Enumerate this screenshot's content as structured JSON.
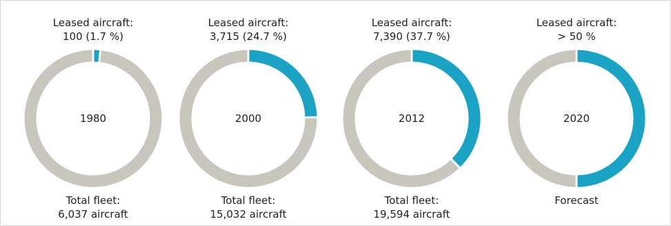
{
  "colors": {
    "leased": "#1aa3c4",
    "total": "#c8c6bd",
    "separator": "#ffffff",
    "text": "#222222"
  },
  "chart_data": [
    {
      "type": "pie",
      "center_label": "1980",
      "top_label_line1": "Leased aircraft:",
      "top_label_line2": "100 (1.7 %)",
      "bottom_label_line1": "Total fleet:",
      "bottom_label_line2": "6,037 aircraft",
      "leased_count": 100,
      "total_fleet": 6037,
      "leased_share_pct": 1.7
    },
    {
      "type": "pie",
      "center_label": "2000",
      "top_label_line1": "Leased aircraft:",
      "top_label_line2": "3,715 (24.7 %)",
      "bottom_label_line1": "Total fleet:",
      "bottom_label_line2": "15,032 aircraft",
      "leased_count": 3715,
      "total_fleet": 15032,
      "leased_share_pct": 24.7
    },
    {
      "type": "pie",
      "center_label": "2012",
      "top_label_line1": "Leased aircraft:",
      "top_label_line2": "7,390 (37.7 %)",
      "bottom_label_line1": "Total fleet:",
      "bottom_label_line2": "19,594 aircraft",
      "leased_count": 7390,
      "total_fleet": 19594,
      "leased_share_pct": 37.7
    },
    {
      "type": "pie",
      "center_label": "2020",
      "top_label_line1": "Leased aircraft:",
      "top_label_line2": "> 50 %",
      "bottom_label_line1": "Forecast",
      "bottom_label_line2": "",
      "leased_share_pct": 50
    }
  ]
}
